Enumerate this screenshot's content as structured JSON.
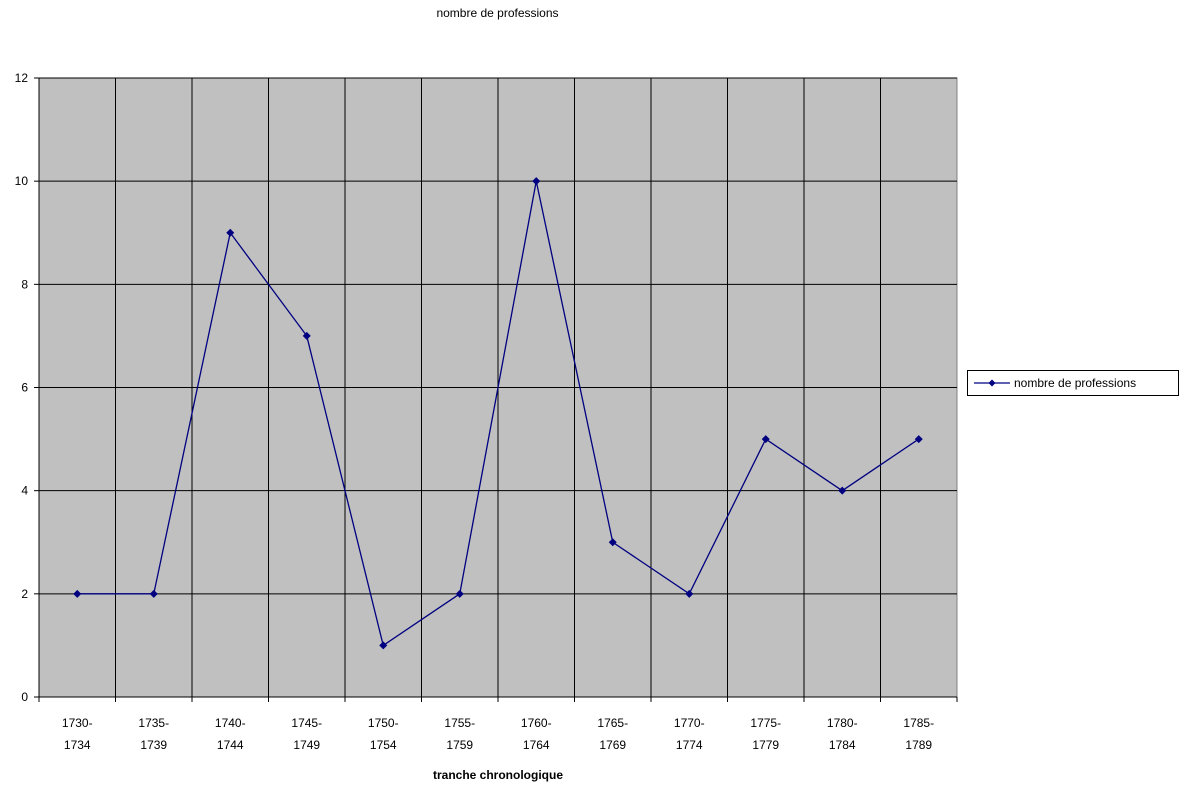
{
  "chart_data": {
    "type": "line",
    "title": "nombre de professions",
    "x_label": "tranche chronologique",
    "categories": [
      "1730-1734",
      "1735-1739",
      "1740-1744",
      "1745-1749",
      "1750-1754",
      "1755-1759",
      "1760-1764",
      "1765-1769",
      "1770-1774",
      "1775-1779",
      "1780-1784",
      "1785-1789"
    ],
    "series": [
      {
        "name": "nombre de professions",
        "color": "#000080",
        "values": [
          2,
          2,
          9,
          7,
          1,
          2,
          10,
          3,
          2,
          5,
          4,
          5
        ]
      }
    ],
    "ylim": [
      0,
      12
    ],
    "yticks": [
      0,
      2,
      4,
      6,
      8,
      10,
      12
    ],
    "grid": true,
    "plot_background": "#c0c0c0",
    "legend": "right"
  }
}
